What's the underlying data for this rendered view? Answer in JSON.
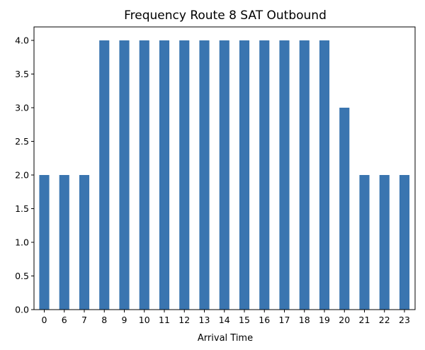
{
  "chart_data": {
    "type": "bar",
    "title": "Frequency Route 8 SAT Outbound",
    "xlabel": "Arrival Time",
    "ylabel": "",
    "categories": [
      "0",
      "6",
      "7",
      "8",
      "9",
      "10",
      "11",
      "12",
      "13",
      "14",
      "15",
      "16",
      "17",
      "18",
      "19",
      "20",
      "21",
      "22",
      "23"
    ],
    "values": [
      2,
      2,
      2,
      4,
      4,
      4,
      4,
      4,
      4,
      4,
      4,
      4,
      4,
      4,
      4,
      3,
      2,
      2,
      2
    ],
    "ylim": [
      0,
      4.2
    ],
    "yticks": [
      "0.0",
      "0.5",
      "1.0",
      "1.5",
      "2.0",
      "2.5",
      "3.0",
      "3.5",
      "4.0"
    ],
    "grid": false,
    "bar_color": "#3a75b0"
  }
}
